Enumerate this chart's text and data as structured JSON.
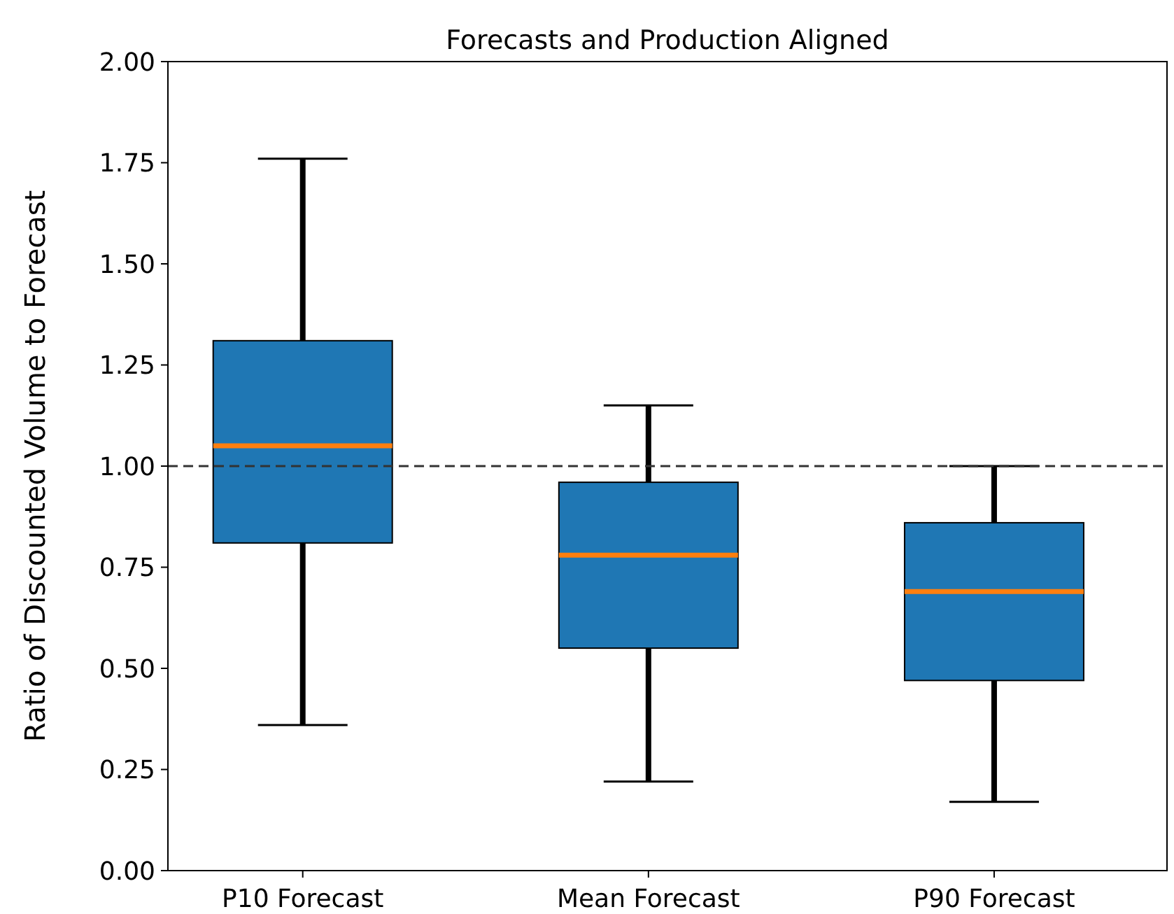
{
  "chart_data": {
    "type": "box",
    "title": "Forecasts and Production Aligned",
    "ylabel": "Ratio of Discounted Volume to Forecast",
    "categories": [
      "P10 Forecast",
      "Mean Forecast",
      "P90 Forecast"
    ],
    "boxes": [
      {
        "low": 0.36,
        "q1": 0.81,
        "median": 1.05,
        "q3": 1.31,
        "high": 1.76
      },
      {
        "low": 0.22,
        "q1": 0.55,
        "median": 0.78,
        "q3": 0.96,
        "high": 1.15
      },
      {
        "low": 0.17,
        "q1": 0.47,
        "median": 0.69,
        "q3": 0.86,
        "high": 1.0
      }
    ],
    "color": "#1f77b4",
    "ylim": [
      0,
      2
    ],
    "yticks": [
      {
        "value": 0,
        "label": "0.00"
      },
      {
        "value": 0.25,
        "label": "0.25"
      },
      {
        "value": 0.5,
        "label": "0.50"
      },
      {
        "value": 0.75,
        "label": "0.75"
      },
      {
        "value": 1,
        "label": "1.00"
      },
      {
        "value": 1.25,
        "label": "1.25"
      },
      {
        "value": 1.5,
        "label": "1.50"
      },
      {
        "value": 1.75,
        "label": "1.75"
      },
      {
        "value": 2,
        "label": "2.00"
      }
    ],
    "ref_lines": [
      {
        "axis": "y",
        "value": 1,
        "line_style": "dashed",
        "color": "#333333"
      }
    ],
    "grid": false
  }
}
